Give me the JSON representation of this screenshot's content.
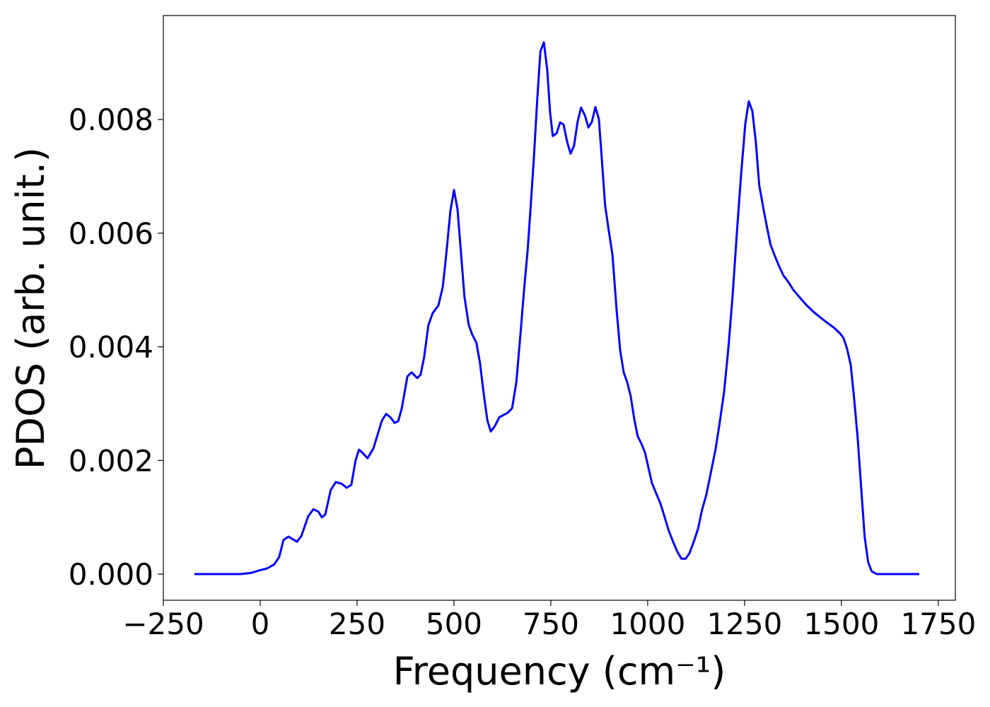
{
  "chart_data": {
    "type": "line",
    "xlabel": "Frequency (cm⁻¹)",
    "ylabel": "PDOS (arb. unit.)",
    "xlim": [
      -250,
      1794
    ],
    "ylim": [
      -0.00046,
      0.00983
    ],
    "xticks": [
      {
        "value": -250,
        "label": "−250"
      },
      0,
      250,
      500,
      750,
      1000,
      1250,
      1500,
      1750
    ],
    "yticks": [
      {
        "value": 0,
        "label": "0.000"
      },
      {
        "value": 0.002,
        "label": "0.002"
      },
      {
        "value": 0.004,
        "label": "0.004"
      },
      {
        "value": 0.006,
        "label": "0.006"
      },
      {
        "value": 0.008,
        "label": "0.008"
      }
    ],
    "x": [
      -170,
      -51,
      -24,
      0,
      18,
      36,
      49,
      60,
      73,
      95,
      106,
      124,
      137,
      150,
      159,
      168,
      182,
      195,
      210,
      223,
      235,
      246,
      255,
      266,
      277,
      292,
      314,
      325,
      336,
      347,
      356,
      365,
      380,
      391,
      405,
      414,
      423,
      434,
      445,
      460,
      471,
      480,
      491,
      500,
      509,
      518,
      527,
      538,
      547,
      558,
      567,
      577,
      586,
      595,
      606,
      617,
      628,
      639,
      650,
      661,
      672,
      681,
      690,
      697,
      706,
      715,
      723,
      732,
      741,
      748,
      755,
      765,
      774,
      783,
      792,
      801,
      810,
      819,
      828,
      838,
      847,
      856,
      865,
      874,
      881,
      890,
      898,
      909,
      920,
      929,
      938,
      947,
      956,
      965,
      974,
      984,
      993,
      1002,
      1011,
      1022,
      1033,
      1044,
      1054,
      1065,
      1076,
      1087,
      1098,
      1108,
      1119,
      1130,
      1140,
      1151,
      1164,
      1175,
      1186,
      1197,
      1208,
      1219,
      1230,
      1241,
      1252,
      1261,
      1270,
      1279,
      1288,
      1299,
      1308,
      1317,
      1328,
      1339,
      1350,
      1363,
      1376,
      1391,
      1409,
      1427,
      1445,
      1464,
      1482,
      1496,
      1505,
      1514,
      1524,
      1533,
      1542,
      1551,
      1560,
      1569,
      1578,
      1591,
      1701
    ],
    "series": [
      {
        "name": "PDOS",
        "color": "#0000ff",
        "values": [
          0,
          0,
          2e-05,
          7e-05,
          0.0001,
          0.00017,
          0.0003,
          0.0006,
          0.00066,
          0.00057,
          0.00067,
          0.00102,
          0.00114,
          0.0011,
          0.001,
          0.00105,
          0.00148,
          0.00162,
          0.00159,
          0.00152,
          0.00157,
          0.002,
          0.00219,
          0.00212,
          0.00204,
          0.00221,
          0.0027,
          0.00282,
          0.00276,
          0.00266,
          0.00269,
          0.00291,
          0.00348,
          0.00355,
          0.00345,
          0.00351,
          0.00382,
          0.00438,
          0.00459,
          0.00473,
          0.00505,
          0.00562,
          0.0064,
          0.00676,
          0.00643,
          0.00567,
          0.00488,
          0.00439,
          0.00422,
          0.00407,
          0.00372,
          0.00316,
          0.00271,
          0.00251,
          0.00261,
          0.00276,
          0.0028,
          0.00284,
          0.00292,
          0.00338,
          0.00425,
          0.005,
          0.00569,
          0.00637,
          0.00729,
          0.00836,
          0.0092,
          0.00936,
          0.00886,
          0.00814,
          0.00771,
          0.00776,
          0.00795,
          0.00791,
          0.00761,
          0.0074,
          0.00754,
          0.00796,
          0.00821,
          0.00807,
          0.00786,
          0.00796,
          0.00822,
          0.00801,
          0.00737,
          0.00649,
          0.00612,
          0.00562,
          0.00463,
          0.00394,
          0.00355,
          0.00338,
          0.00314,
          0.00274,
          0.00243,
          0.00229,
          0.00214,
          0.00187,
          0.0016,
          0.00142,
          0.00124,
          0.001,
          0.00077,
          0.00058,
          0.0004,
          0.00027,
          0.00027,
          0.00037,
          0.00057,
          0.0008,
          0.00112,
          0.00139,
          0.00182,
          0.00219,
          0.00267,
          0.0032,
          0.00396,
          0.00488,
          0.006,
          0.00703,
          0.00793,
          0.00832,
          0.00815,
          0.00761,
          0.00684,
          0.00642,
          0.0061,
          0.0058,
          0.0056,
          0.00542,
          0.00526,
          0.00514,
          0.005,
          0.00488,
          0.00474,
          0.00462,
          0.00452,
          0.00442,
          0.00433,
          0.00424,
          0.00416,
          0.00398,
          0.00368,
          0.00307,
          0.00239,
          0.00152,
          0.00065,
          0.00021,
          5e-05,
          0,
          0
        ]
      }
    ]
  }
}
